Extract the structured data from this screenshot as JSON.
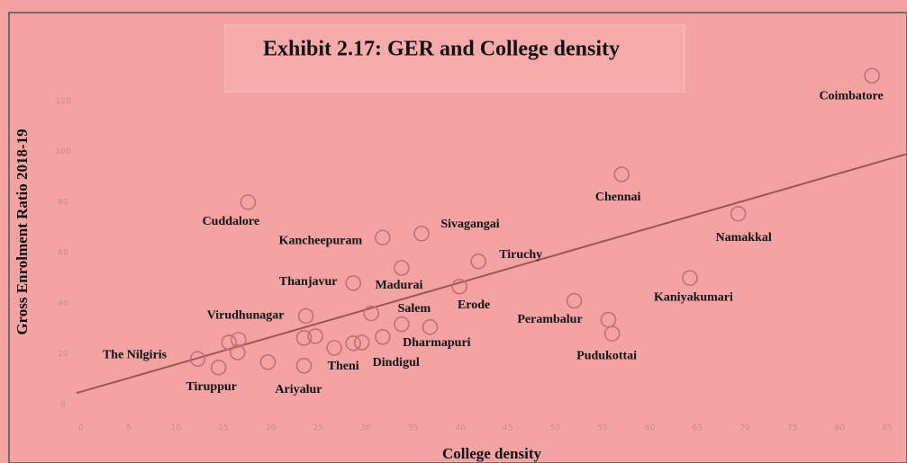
{
  "chart_data": {
    "type": "scatter",
    "title": "Exhibit 2.17: GER and College density",
    "x_label": "College density",
    "y_label": "Gross Enrolment Ratio 2018-19",
    "x": [
      83.4,
      57,
      69.3,
      64.2,
      52,
      56,
      17.6,
      31.8,
      35.9,
      41.9,
      33.8,
      28.7,
      39.9,
      23.7,
      33.8,
      31.8,
      26.7,
      29.6,
      23.5,
      14.5,
      12.3,
      55.6,
      30.6,
      36.8,
      24.7,
      23.5,
      16.6,
      15.6,
      16.5,
      28.7,
      19.7
    ],
    "values": [
      130,
      91,
      75.4,
      50,
      41,
      28,
      80,
      66,
      67.6,
      56.6,
      54,
      48,
      46.6,
      35,
      31.7,
      26.7,
      22.4,
      24.5,
      15.3,
      14.6,
      18,
      33.5,
      36,
      30.6,
      27,
      26.3,
      25.6,
      24.5,
      20.6,
      24.2,
      16.7
    ],
    "labels": [
      "Coimbatore",
      "Chennai",
      "Namakkal",
      "Kaniyakumari",
      "Perambalur",
      "Pudukottai",
      "Cuddalore",
      "Kancheepuram",
      "Sivagangai",
      "Tiruchy",
      "Madurai",
      "Thanjavur",
      "Erode",
      "Virudhunagar",
      "Salem",
      "Dharmapuri",
      "Theni",
      "Dindigul",
      "Ariyalur",
      "Tiruppur",
      "The Nilgiris",
      null,
      null,
      null,
      null,
      null,
      null,
      null,
      null,
      null,
      null
    ],
    "color": "#c27070",
    "trendline": {
      "x": [
        -0.5,
        87
      ],
      "y": [
        4.5,
        99
      ],
      "color": "#a05555"
    },
    "xlim": [
      -2,
      87
    ],
    "ylim": [
      -10,
      150
    ],
    "xticks": [
      0,
      5,
      10,
      15,
      20,
      25,
      30,
      35,
      40,
      45,
      50,
      55,
      60,
      65,
      70,
      75,
      80,
      85
    ],
    "yticks": [
      0,
      20,
      40,
      60,
      80,
      100,
      120
    ]
  }
}
